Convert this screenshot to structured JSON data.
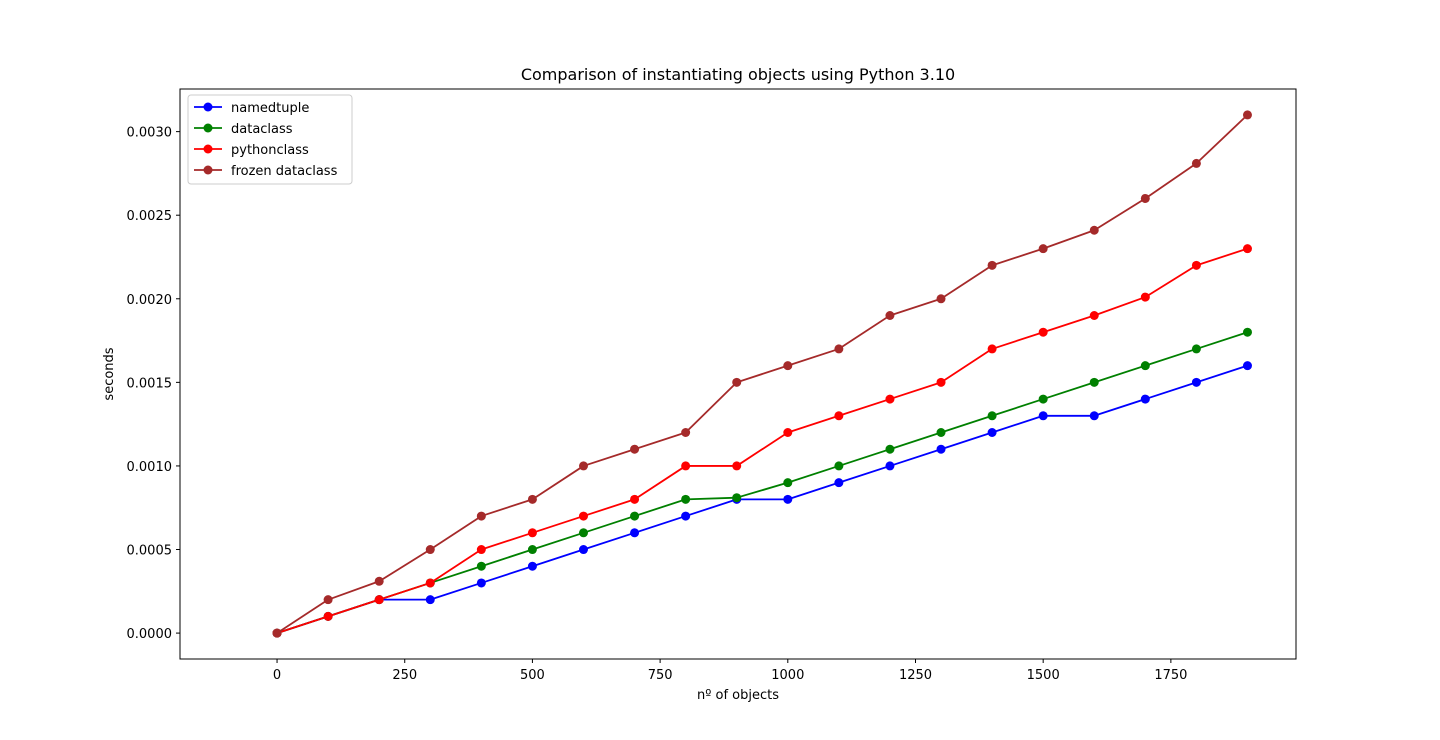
{
  "chart_data": {
    "type": "line",
    "title": "Comparison of instantiating objects using Python 3.10",
    "xlabel": "nº of objects",
    "ylabel": "seconds",
    "xlim": [
      -190,
      1995
    ],
    "ylim": [
      -0.000155,
      0.003255
    ],
    "xticks": [
      0,
      250,
      500,
      750,
      1000,
      1250,
      1500,
      1750
    ],
    "xtick_labels": [
      "0",
      "250",
      "500",
      "750",
      "1000",
      "1250",
      "1500",
      "1750"
    ],
    "yticks": [
      0.0,
      0.0005,
      0.001,
      0.0015,
      0.002,
      0.0025,
      0.003
    ],
    "ytick_labels": [
      "0.0000",
      "0.0005",
      "0.0010",
      "0.0015",
      "0.0020",
      "0.0025",
      "0.0030"
    ],
    "grid": false,
    "legend_position": "top-left",
    "x": [
      0,
      100,
      200,
      300,
      400,
      500,
      600,
      700,
      800,
      900,
      1000,
      1100,
      1200,
      1300,
      1400,
      1500,
      1600,
      1700,
      1800,
      1900
    ],
    "series": [
      {
        "name": "namedtuple",
        "color": "#0000ff",
        "values": [
          0.0,
          0.0001,
          0.0002,
          0.0002,
          0.0003,
          0.0004,
          0.0005,
          0.0006,
          0.0007,
          0.0008,
          0.0008,
          0.0009,
          0.001,
          0.0011,
          0.0012,
          0.0013,
          0.0013,
          0.0014,
          0.0015,
          0.0016
        ]
      },
      {
        "name": "dataclass",
        "color": "#008000",
        "values": [
          0.0,
          0.0001,
          0.0002,
          0.0003,
          0.0004,
          0.0005,
          0.0006,
          0.0007,
          0.0008,
          0.00081,
          0.0009,
          0.001,
          0.0011,
          0.0012,
          0.0013,
          0.0014,
          0.0015,
          0.0016,
          0.0017,
          0.0018
        ]
      },
      {
        "name": "pythonclass",
        "color": "#ff0000",
        "values": [
          0.0,
          0.0001,
          0.0002,
          0.0003,
          0.0005,
          0.0006,
          0.0007,
          0.0008,
          0.001,
          0.001,
          0.0012,
          0.0013,
          0.0014,
          0.0015,
          0.0017,
          0.0018,
          0.0019,
          0.00201,
          0.0022,
          0.0023
        ]
      },
      {
        "name": "frozen dataclass",
        "color": "#a52a2a",
        "values": [
          0.0,
          0.0002,
          0.00031,
          0.0005,
          0.0007,
          0.0008,
          0.001,
          0.0011,
          0.0012,
          0.0015,
          0.0016,
          0.0017,
          0.0019,
          0.002,
          0.0022,
          0.0023,
          0.00241,
          0.0026,
          0.00281,
          0.0031
        ]
      }
    ]
  }
}
